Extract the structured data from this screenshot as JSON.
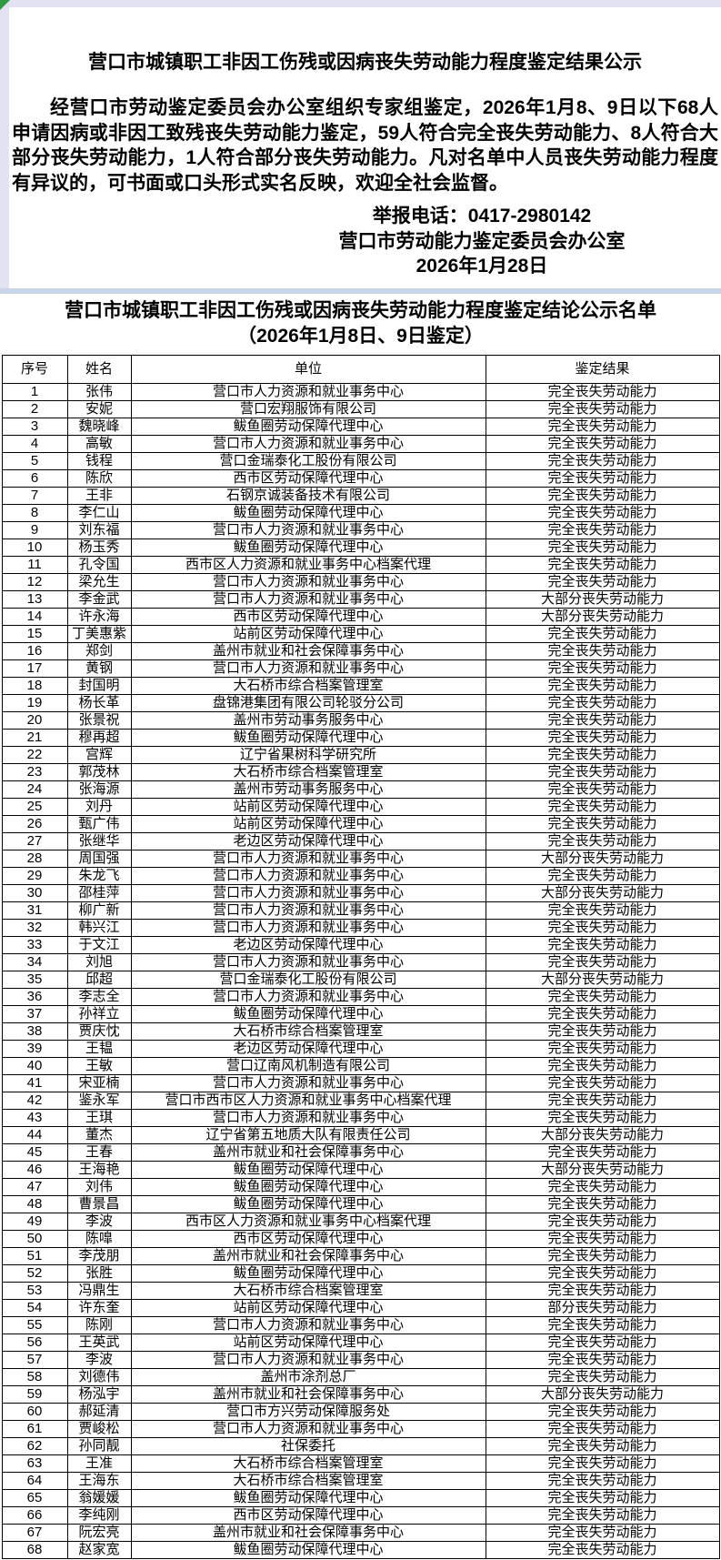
{
  "announcement": {
    "title": "营口市城镇职工非因工伤残或因病丧失劳动能力程度鉴定结果公示",
    "body": "经营口市劳动鉴定委员会办公室组织专家组鉴定，2026年1月8、9日以下68人申请因病或非因工致残丧失劳动能力鉴定，59人符合完全丧失劳动能力、8人符合大部分丧失劳动能力，1人符合部分丧失劳动能力。凡对名单中人员丧失劳动能力程度有异议的，可书面或口头形式实名反映，欢迎全社会监督。",
    "hotline": "举报电话：0417-2980142",
    "office": "营口市劳动能力鉴定委员会办公室",
    "date": "2026年1月28日"
  },
  "list": {
    "title_line1": "营口市城镇职工非因工伤残或因病丧失劳动能力程度鉴定结论公示名单",
    "title_line2": "（2026年1月8日、9日鉴定）",
    "columns": [
      "序号",
      "姓名",
      "单位",
      "鉴定结果"
    ],
    "rows": [
      [
        "1",
        "张伟",
        "营口市人力资源和就业事务中心",
        "完全丧失劳动能力"
      ],
      [
        "2",
        "安妮",
        "营口宏翔服饰有限公司",
        "完全丧失劳动能力"
      ],
      [
        "3",
        "魏晓峰",
        "鲅鱼圈劳动保障代理中心",
        "完全丧失劳动能力"
      ],
      [
        "4",
        "高敏",
        "营口市人力资源和就业事务中心",
        "完全丧失劳动能力"
      ],
      [
        "5",
        "钱程",
        "营口金瑞泰化工股份有限公司",
        "完全丧失劳动能力"
      ],
      [
        "6",
        "陈欣",
        "西市区劳动保障代理中心",
        "完全丧失劳动能力"
      ],
      [
        "7",
        "王非",
        "石钢京诚装备技术有限公司",
        "完全丧失劳动能力"
      ],
      [
        "8",
        "李仁山",
        "鲅鱼圈劳动保障代理中心",
        "完全丧失劳动能力"
      ],
      [
        "9",
        "刘东福",
        "营口市人力资源和就业事务中心",
        "完全丧失劳动能力"
      ],
      [
        "10",
        "杨玉秀",
        "鲅鱼圈劳动保障代理中心",
        "完全丧失劳动能力"
      ],
      [
        "11",
        "孔令国",
        "西市区人力资源和就业事务中心档案代理",
        "完全丧失劳动能力"
      ],
      [
        "12",
        "梁允生",
        "营口市人力资源和就业事务中心",
        "完全丧失劳动能力"
      ],
      [
        "13",
        "李金武",
        "营口市人力资源和就业事务中心",
        "大部分丧失劳动能力"
      ],
      [
        "14",
        "许永海",
        "西市区劳动保障代理中心",
        "大部分丧失劳动能力"
      ],
      [
        "15",
        "丁美惠紫",
        "站前区劳动保障代理中心",
        "完全丧失劳动能力"
      ],
      [
        "16",
        "郑剑",
        "盖州市就业和社会保障事务中心",
        "完全丧失劳动能力"
      ],
      [
        "17",
        "黄钢",
        "营口市人力资源和就业事务中心",
        "完全丧失劳动能力"
      ],
      [
        "18",
        "封国明",
        "大石桥市综合档案管理室",
        "完全丧失劳动能力"
      ],
      [
        "19",
        "杨长革",
        "盘锦港集团有限公司轮驳分公司",
        "完全丧失劳动能力"
      ],
      [
        "20",
        "张景祝",
        "盖州市劳动事务服务中心",
        "完全丧失劳动能力"
      ],
      [
        "21",
        "穆再超",
        "鲅鱼圈劳动保障代理中心",
        "完全丧失劳动能力"
      ],
      [
        "22",
        "宫辉",
        "辽宁省果树科学研究所",
        "完全丧失劳动能力"
      ],
      [
        "23",
        "郭茂林",
        "大石桥市综合档案管理室",
        "完全丧失劳动能力"
      ],
      [
        "24",
        "张海源",
        "盖州市劳动事务服务中心",
        "完全丧失劳动能力"
      ],
      [
        "25",
        "刘丹",
        "站前区劳动保障代理中心",
        "完全丧失劳动能力"
      ],
      [
        "26",
        "甄广伟",
        "站前区劳动保障代理中心",
        "完全丧失劳动能力"
      ],
      [
        "27",
        "张继华",
        "老边区劳动保障代理中心",
        "完全丧失劳动能力"
      ],
      [
        "28",
        "周国强",
        "营口市人力资源和就业事务中心",
        "大部分丧失劳动能力"
      ],
      [
        "29",
        "朱龙飞",
        "营口市人力资源和就业事务中心",
        "完全丧失劳动能力"
      ],
      [
        "30",
        "邵桂萍",
        "营口市人力资源和就业事务中心",
        "大部分丧失劳动能力"
      ],
      [
        "31",
        "柳广新",
        "营口市人力资源和就业事务中心",
        "完全丧失劳动能力"
      ],
      [
        "32",
        "韩兴江",
        "营口市人力资源和就业事务中心",
        "完全丧失劳动能力"
      ],
      [
        "33",
        "于文江",
        "老边区劳动保障代理中心",
        "完全丧失劳动能力"
      ],
      [
        "34",
        "刘旭",
        "营口市人力资源和就业事务中心",
        "完全丧失劳动能力"
      ],
      [
        "35",
        "邱超",
        "营口金瑞泰化工股份有限公司",
        "大部分丧失劳动能力"
      ],
      [
        "36",
        "李志全",
        "营口市人力资源和就业事务中心",
        "完全丧失劳动能力"
      ],
      [
        "37",
        "孙祥立",
        "鲅鱼圈劳动保障代理中心",
        "完全丧失劳动能力"
      ],
      [
        "38",
        "贾庆忱",
        "大石桥市综合档案管理室",
        "完全丧失劳动能力"
      ],
      [
        "39",
        "王韫",
        "老边区劳动保障代理中心",
        "完全丧失劳动能力"
      ],
      [
        "40",
        "王敏",
        "营口辽南风机制造有限公司",
        "完全丧失劳动能力"
      ],
      [
        "41",
        "宋亚楠",
        "营口市人力资源和就业事务中心",
        "完全丧失劳动能力"
      ],
      [
        "42",
        "鉴永军",
        "营口市西市区人力资源和就业事务中心档案代理",
        "完全丧失劳动能力"
      ],
      [
        "43",
        "王琪",
        "营口市人力资源和就业事务中心",
        "完全丧失劳动能力"
      ],
      [
        "44",
        "董杰",
        "辽宁省第五地质大队有限责任公司",
        "大部分丧失劳动能力"
      ],
      [
        "45",
        "王春",
        "盖州市就业和社会保障事务中心",
        "完全丧失劳动能力"
      ],
      [
        "46",
        "王海艳",
        "鲅鱼圈劳动保障代理中心",
        "大部分丧失劳动能力"
      ],
      [
        "47",
        "刘伟",
        "鲅鱼圈劳动保障代理中心",
        "完全丧失劳动能力"
      ],
      [
        "48",
        "曹景昌",
        "鲅鱼圈劳动保障代理中心",
        "完全丧失劳动能力"
      ],
      [
        "49",
        "李波",
        "西市区人力资源和就业事务中心档案代理",
        "完全丧失劳动能力"
      ],
      [
        "50",
        "陈嘷",
        "西市区劳动保障代理中心",
        "完全丧失劳动能力"
      ],
      [
        "51",
        "李茂朋",
        "盖州市就业和社会保障事务中心",
        "完全丧失劳动能力"
      ],
      [
        "52",
        "张胜",
        "鲅鱼圈劳动保障代理中心",
        "完全丧失劳动能力"
      ],
      [
        "53",
        "冯鼎生",
        "大石桥市综合档案管理室",
        "完全丧失劳动能力"
      ],
      [
        "54",
        "许东奎",
        "站前区劳动保障代理中心",
        "部分丧失劳动能力"
      ],
      [
        "55",
        "陈刚",
        "营口市人力资源和就业事务中心",
        "完全丧失劳动能力"
      ],
      [
        "56",
        "王英武",
        "站前区劳动保障代理中心",
        "完全丧失劳动能力"
      ],
      [
        "57",
        "李波",
        "营口市人力资源和就业事务中心",
        "完全丧失劳动能力"
      ],
      [
        "58",
        "刘德伟",
        "盖州市涂剂总厂",
        "完全丧失劳动能力"
      ],
      [
        "59",
        "杨泓宇",
        "盖州市就业和社会保障事务中心",
        "大部分丧失劳动能力"
      ],
      [
        "60",
        "郝延清",
        "营口市方兴劳动保障服务处",
        "完全丧失劳动能力"
      ],
      [
        "61",
        "贾峻松",
        "营口市人力资源和就业事务中心",
        "完全丧失劳动能力"
      ],
      [
        "62",
        "孙同靓",
        "社保委托",
        "完全丧失劳动能力"
      ],
      [
        "63",
        "王准",
        "大石桥市综合档案管理室",
        "完全丧失劳动能力"
      ],
      [
        "64",
        "王海东",
        "大石桥市综合档案管理室",
        "完全丧失劳动能力"
      ],
      [
        "65",
        "翁媛媛",
        "鲅鱼圈劳动保障代理中心",
        "完全丧失劳动能力"
      ],
      [
        "66",
        "李纯刚",
        "西市区劳动保障代理中心",
        "完全丧失劳动能力"
      ],
      [
        "67",
        "阮宏亮",
        "盖州市就业和社会保障事务中心",
        "完全丧失劳动能力"
      ],
      [
        "68",
        "赵家宽",
        "鲅鱼圈劳动保障代理中心",
        "完全丧失劳动能力"
      ]
    ]
  },
  "colors": {
    "page_margin": "#e2e2f3",
    "separator_band": "#ccd5e8",
    "sheet_background": "#ffffff",
    "corner_marker_green": "#2f9b44",
    "text": "#000000",
    "table_border": "#000000"
  }
}
